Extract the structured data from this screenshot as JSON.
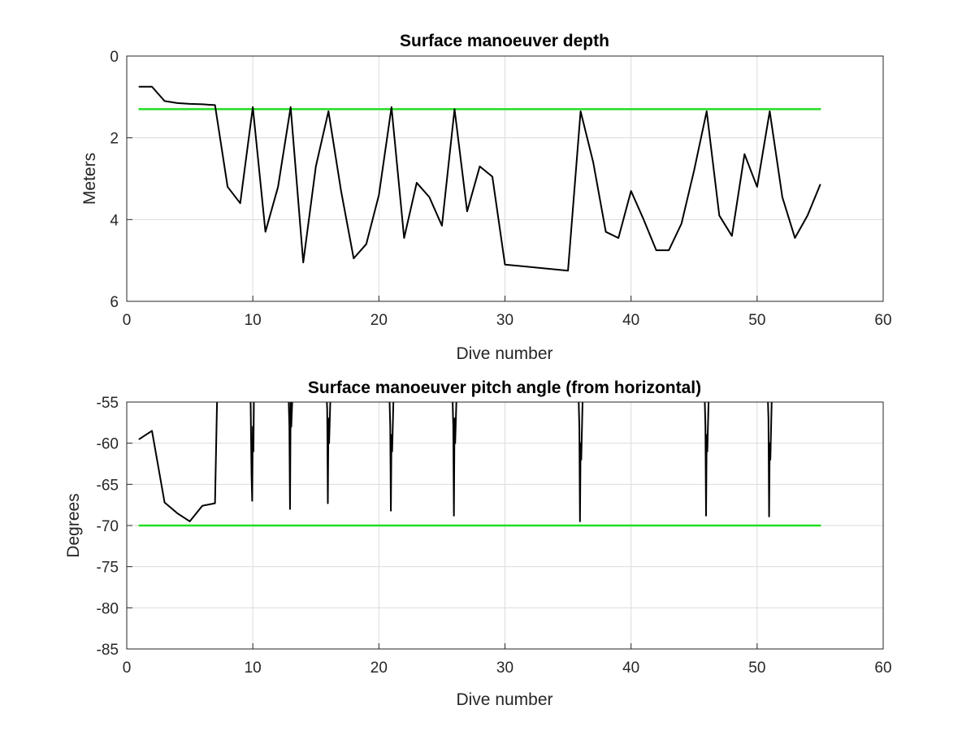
{
  "chart_data": [
    {
      "type": "line",
      "title": "Surface manoeuver depth",
      "xlabel": "Dive number",
      "ylabel": "Meters",
      "xlim": [
        0,
        60
      ],
      "ylim": [
        0,
        6
      ],
      "y_reversed": true,
      "grid": true,
      "xticks": [
        "0",
        "10",
        "20",
        "30",
        "40",
        "50",
        "60"
      ],
      "yticks": [
        "0",
        "2",
        "4",
        "6"
      ],
      "series": [
        {
          "color": "#000000",
          "x": [
            1,
            2,
            3,
            4,
            5,
            6,
            7,
            8,
            9,
            10,
            11,
            12,
            13,
            14,
            15,
            16,
            17,
            18,
            19,
            20,
            21,
            22,
            23,
            24,
            25,
            26,
            27,
            28,
            29,
            30,
            35,
            36,
            37,
            38,
            39,
            40,
            41,
            42,
            43,
            44,
            45,
            46,
            47,
            48,
            49,
            50,
            51,
            52,
            53,
            54,
            55
          ],
          "values": [
            0.75,
            0.75,
            1.1,
            1.15,
            1.17,
            1.18,
            1.2,
            3.2,
            3.6,
            1.25,
            4.3,
            3.2,
            1.25,
            5.05,
            2.7,
            1.35,
            3.3,
            4.95,
            4.6,
            3.4,
            1.25,
            4.45,
            3.1,
            3.45,
            4.15,
            1.3,
            3.8,
            2.7,
            2.95,
            5.1,
            5.25,
            1.35,
            2.6,
            4.3,
            4.45,
            3.3,
            4.0,
            4.75,
            4.75,
            4.1,
            2.8,
            1.35,
            3.9,
            4.4,
            2.4,
            3.2,
            1.35,
            3.45,
            4.45,
            3.9,
            3.15
          ]
        },
        {
          "color": "#22dd22",
          "x": [
            1,
            55
          ],
          "values": [
            1.3,
            1.3
          ]
        }
      ]
    },
    {
      "type": "line",
      "title": "Surface manoeuver pitch angle (from horizontal)",
      "xlabel": "Dive number",
      "ylabel": "Degrees",
      "xlim": [
        0,
        60
      ],
      "ylim": [
        -85,
        -55
      ],
      "grid": true,
      "xticks": [
        "0",
        "10",
        "20",
        "30",
        "40",
        "50",
        "60"
      ],
      "yticks": [
        "-55",
        "-60",
        "-65",
        "-70",
        "-75",
        "-80",
        "-85"
      ],
      "series": [
        {
          "color": "#000000",
          "x": [
            1,
            2,
            3,
            4,
            5,
            6,
            7,
            7.2,
            9.8,
            9.9,
            9.95,
            10,
            10.05,
            10.1,
            12.8,
            12.9,
            12.95,
            13,
            13.05,
            13.2,
            15.8,
            15.9,
            15.95,
            16,
            16.05,
            16.2,
            20.8,
            20.9,
            20.95,
            21,
            21.05,
            21.2,
            25.8,
            25.9,
            25.95,
            26,
            26.05,
            26.2,
            35.8,
            35.9,
            35.95,
            36,
            36.05,
            36.2,
            45.8,
            45.9,
            45.95,
            46,
            46.05,
            46.2,
            50.8,
            50.9,
            50.95,
            51,
            51.05,
            51.2
          ],
          "values": [
            -59.5,
            -58.5,
            -67.2,
            -68.5,
            -69.5,
            -67.6,
            -67.3,
            -52,
            -52,
            -64,
            -67,
            -58,
            -61,
            -52,
            -52,
            -58,
            -68,
            -55,
            -58,
            -52,
            -52,
            -56,
            -67.3,
            -57,
            -60,
            -52,
            -52,
            -58,
            -68.2,
            -59,
            -61,
            -52,
            -52,
            -58,
            -68.8,
            -57,
            -60,
            -52,
            -52,
            -58,
            -69.5,
            -60,
            -62,
            -52,
            -52,
            -58,
            -68.8,
            -59,
            -61,
            -52,
            -52,
            -57,
            -68.9,
            -60,
            -62,
            -52
          ]
        },
        {
          "color": "#22dd22",
          "x": [
            1,
            55
          ],
          "values": [
            -70,
            -70
          ]
        }
      ]
    }
  ]
}
